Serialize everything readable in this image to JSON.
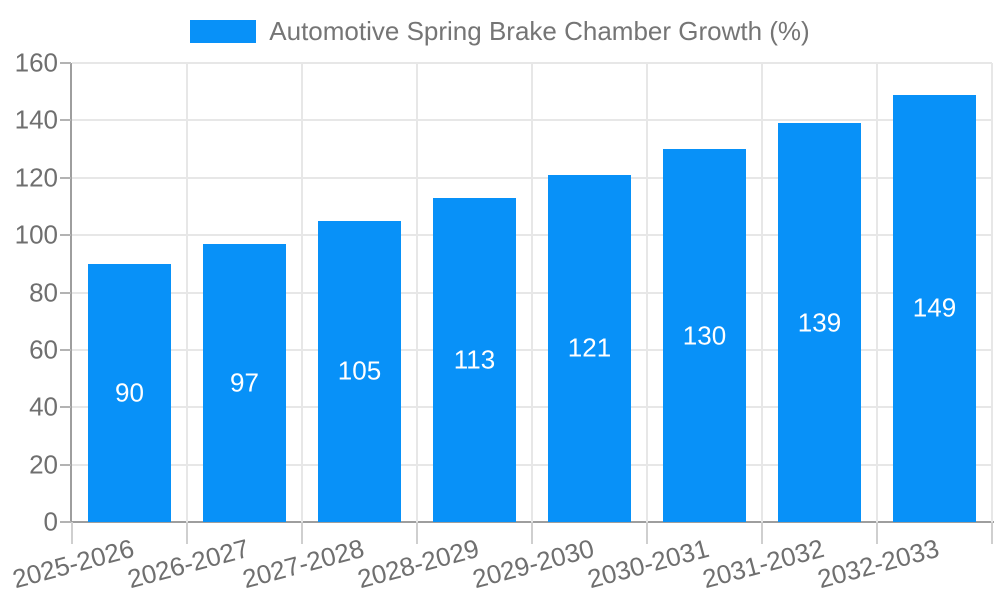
{
  "chart_data": {
    "type": "bar",
    "title": "",
    "legend": [
      "Automotive Spring Brake Chamber Growth (%)"
    ],
    "legend_position": "top",
    "categories": [
      "2025-2026",
      "2026-2027",
      "2027-2028",
      "2028-2029",
      "2029-2030",
      "2030-2031",
      "2031-2032",
      "2032-2033"
    ],
    "values": [
      90,
      97,
      105,
      113,
      121,
      130,
      139,
      149
    ],
    "xlabel": "",
    "ylabel": "",
    "ylim": [
      0,
      160
    ],
    "ytick_step": 20,
    "yticks": [
      0,
      20,
      40,
      60,
      80,
      100,
      120,
      140,
      160
    ],
    "grid": "on",
    "x_label_rotation_deg": -15,
    "colors": {
      "bar": "#0891f8",
      "bar_value_label": "#ffffff",
      "axis_line": "#9e9e9e",
      "gridline": "#e7e7e7",
      "axis_text": "#6f6f6f",
      "legend_text": "#757575"
    }
  }
}
